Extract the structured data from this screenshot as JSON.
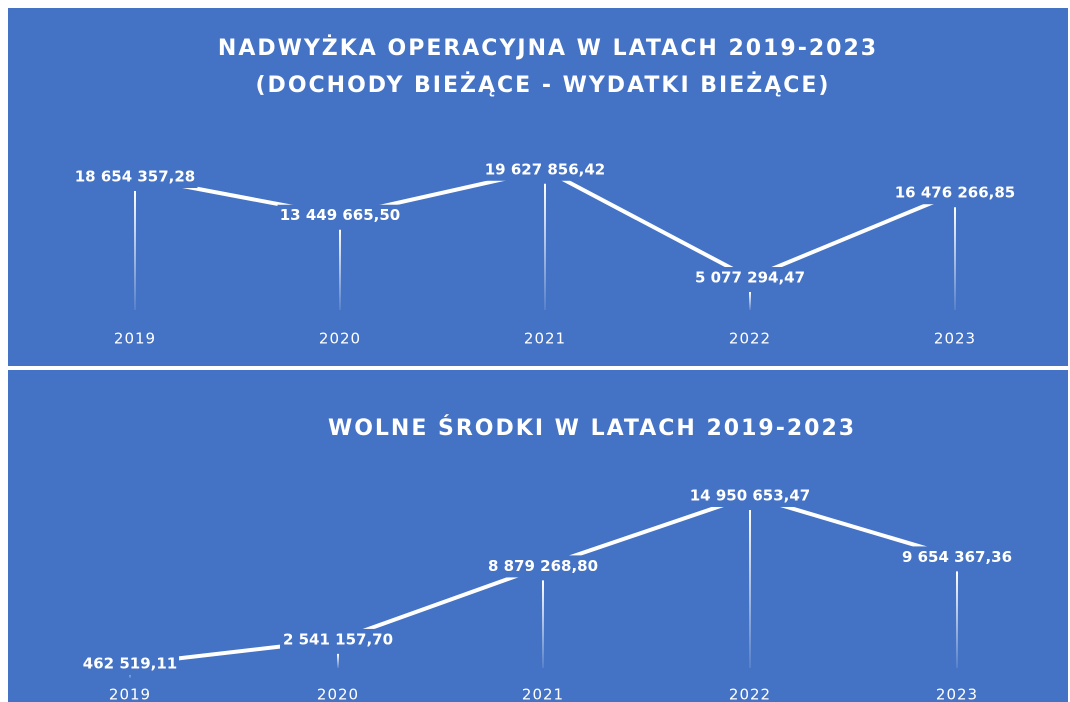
{
  "chart_data": [
    {
      "type": "line",
      "title": "NADWYŻKA OPERACYJNA W LATACH 2019-2023",
      "subtitle": "(DOCHODY BIEŻĄCE - WYDATKI BIEŻĄCE)",
      "categories": [
        "2019",
        "2020",
        "2021",
        "2022",
        "2023"
      ],
      "series": [
        {
          "color": "#ffffff",
          "values": [
            18654357.28,
            13449665.5,
            19627856.42,
            5077294.47,
            16476266.85
          ],
          "value_labels": [
            "18 654 357,28",
            "13 449 665,50",
            "19 627 856,42",
            "5 077 294,47",
            "16 476 266,85"
          ]
        }
      ]
    },
    {
      "type": "line",
      "title": "WOLNE ŚRODKI W LATACH 2019-2023",
      "categories": [
        "2019",
        "2020",
        "2021",
        "2022",
        "2023"
      ],
      "series": [
        {
          "color": "#ffffff",
          "values": [
            462519.11,
            2541157.7,
            8879268.8,
            14950653.47,
            9654367.36
          ],
          "value_labels": [
            "462 519,11",
            "2 541 157,70",
            "8 879 268,80",
            "14 950 653,47",
            "9 654 367,36"
          ]
        }
      ]
    }
  ]
}
